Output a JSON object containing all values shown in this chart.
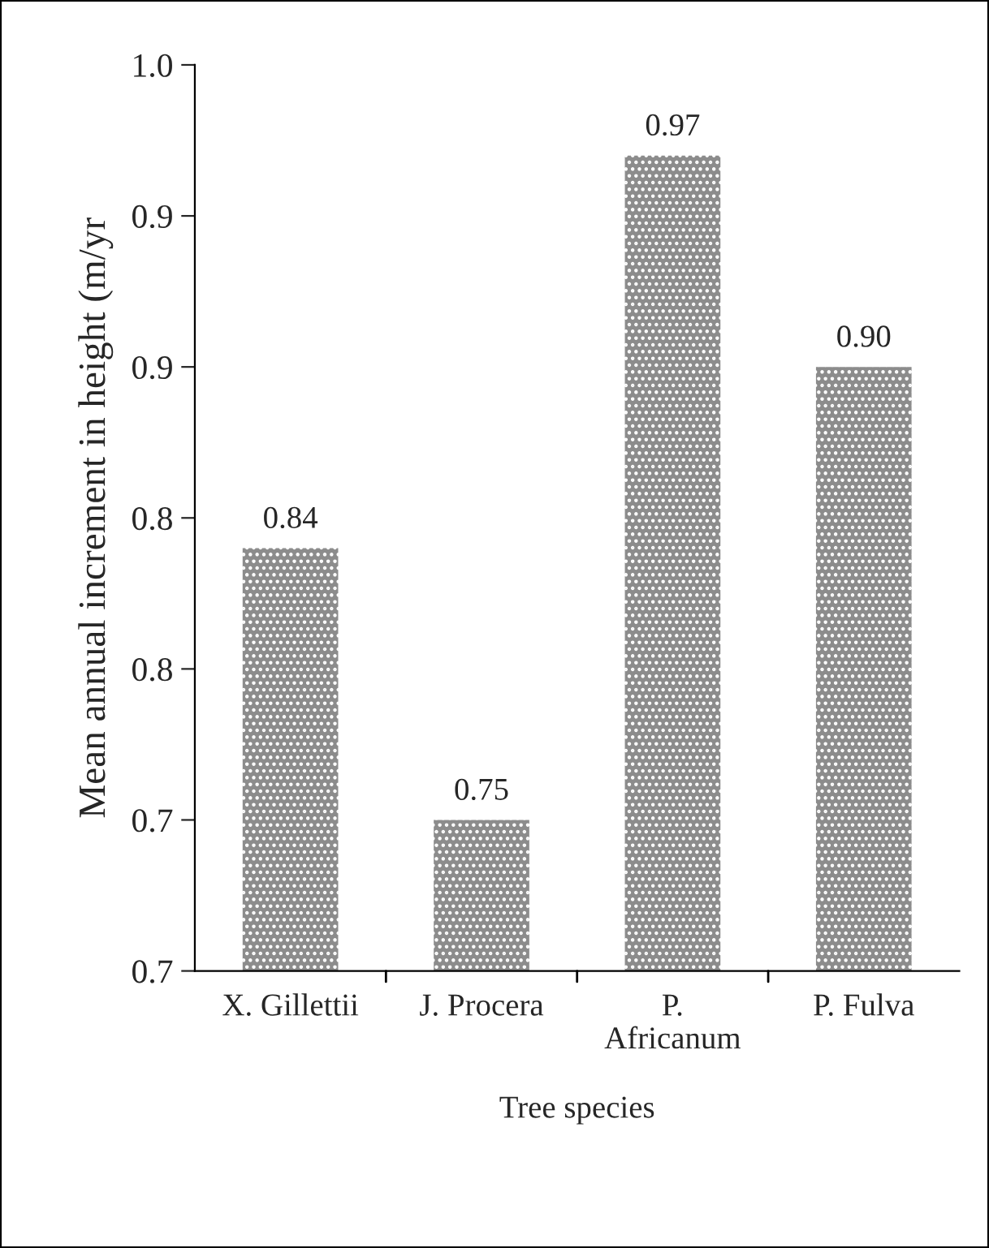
{
  "chart_data": {
    "type": "bar",
    "xlabel": "Tree species",
    "ylabel": "Mean annual increment in height (m/yr",
    "categories": [
      "X. Gillettii",
      "J. Procera",
      "P.\nAfricanum",
      "P. Fulva"
    ],
    "values": [
      0.84,
      0.75,
      0.97,
      0.9
    ],
    "value_labels": [
      "0.84",
      "0.75",
      "0.97",
      "0.90"
    ],
    "color": "#8c8c8c",
    "ylim": [
      0.7,
      1.0
    ],
    "yticks": [
      {
        "value": 0.7,
        "label": "0.7"
      },
      {
        "value": 0.75,
        "label": "0.7"
      },
      {
        "value": 0.8,
        "label": "0.8"
      },
      {
        "value": 0.85,
        "label": "0.8"
      },
      {
        "value": 0.9,
        "label": "0.9"
      },
      {
        "value": 0.95,
        "label": "0.9"
      },
      {
        "value": 1.0,
        "label": "1.0"
      }
    ],
    "grid": false,
    "legend": false
  }
}
